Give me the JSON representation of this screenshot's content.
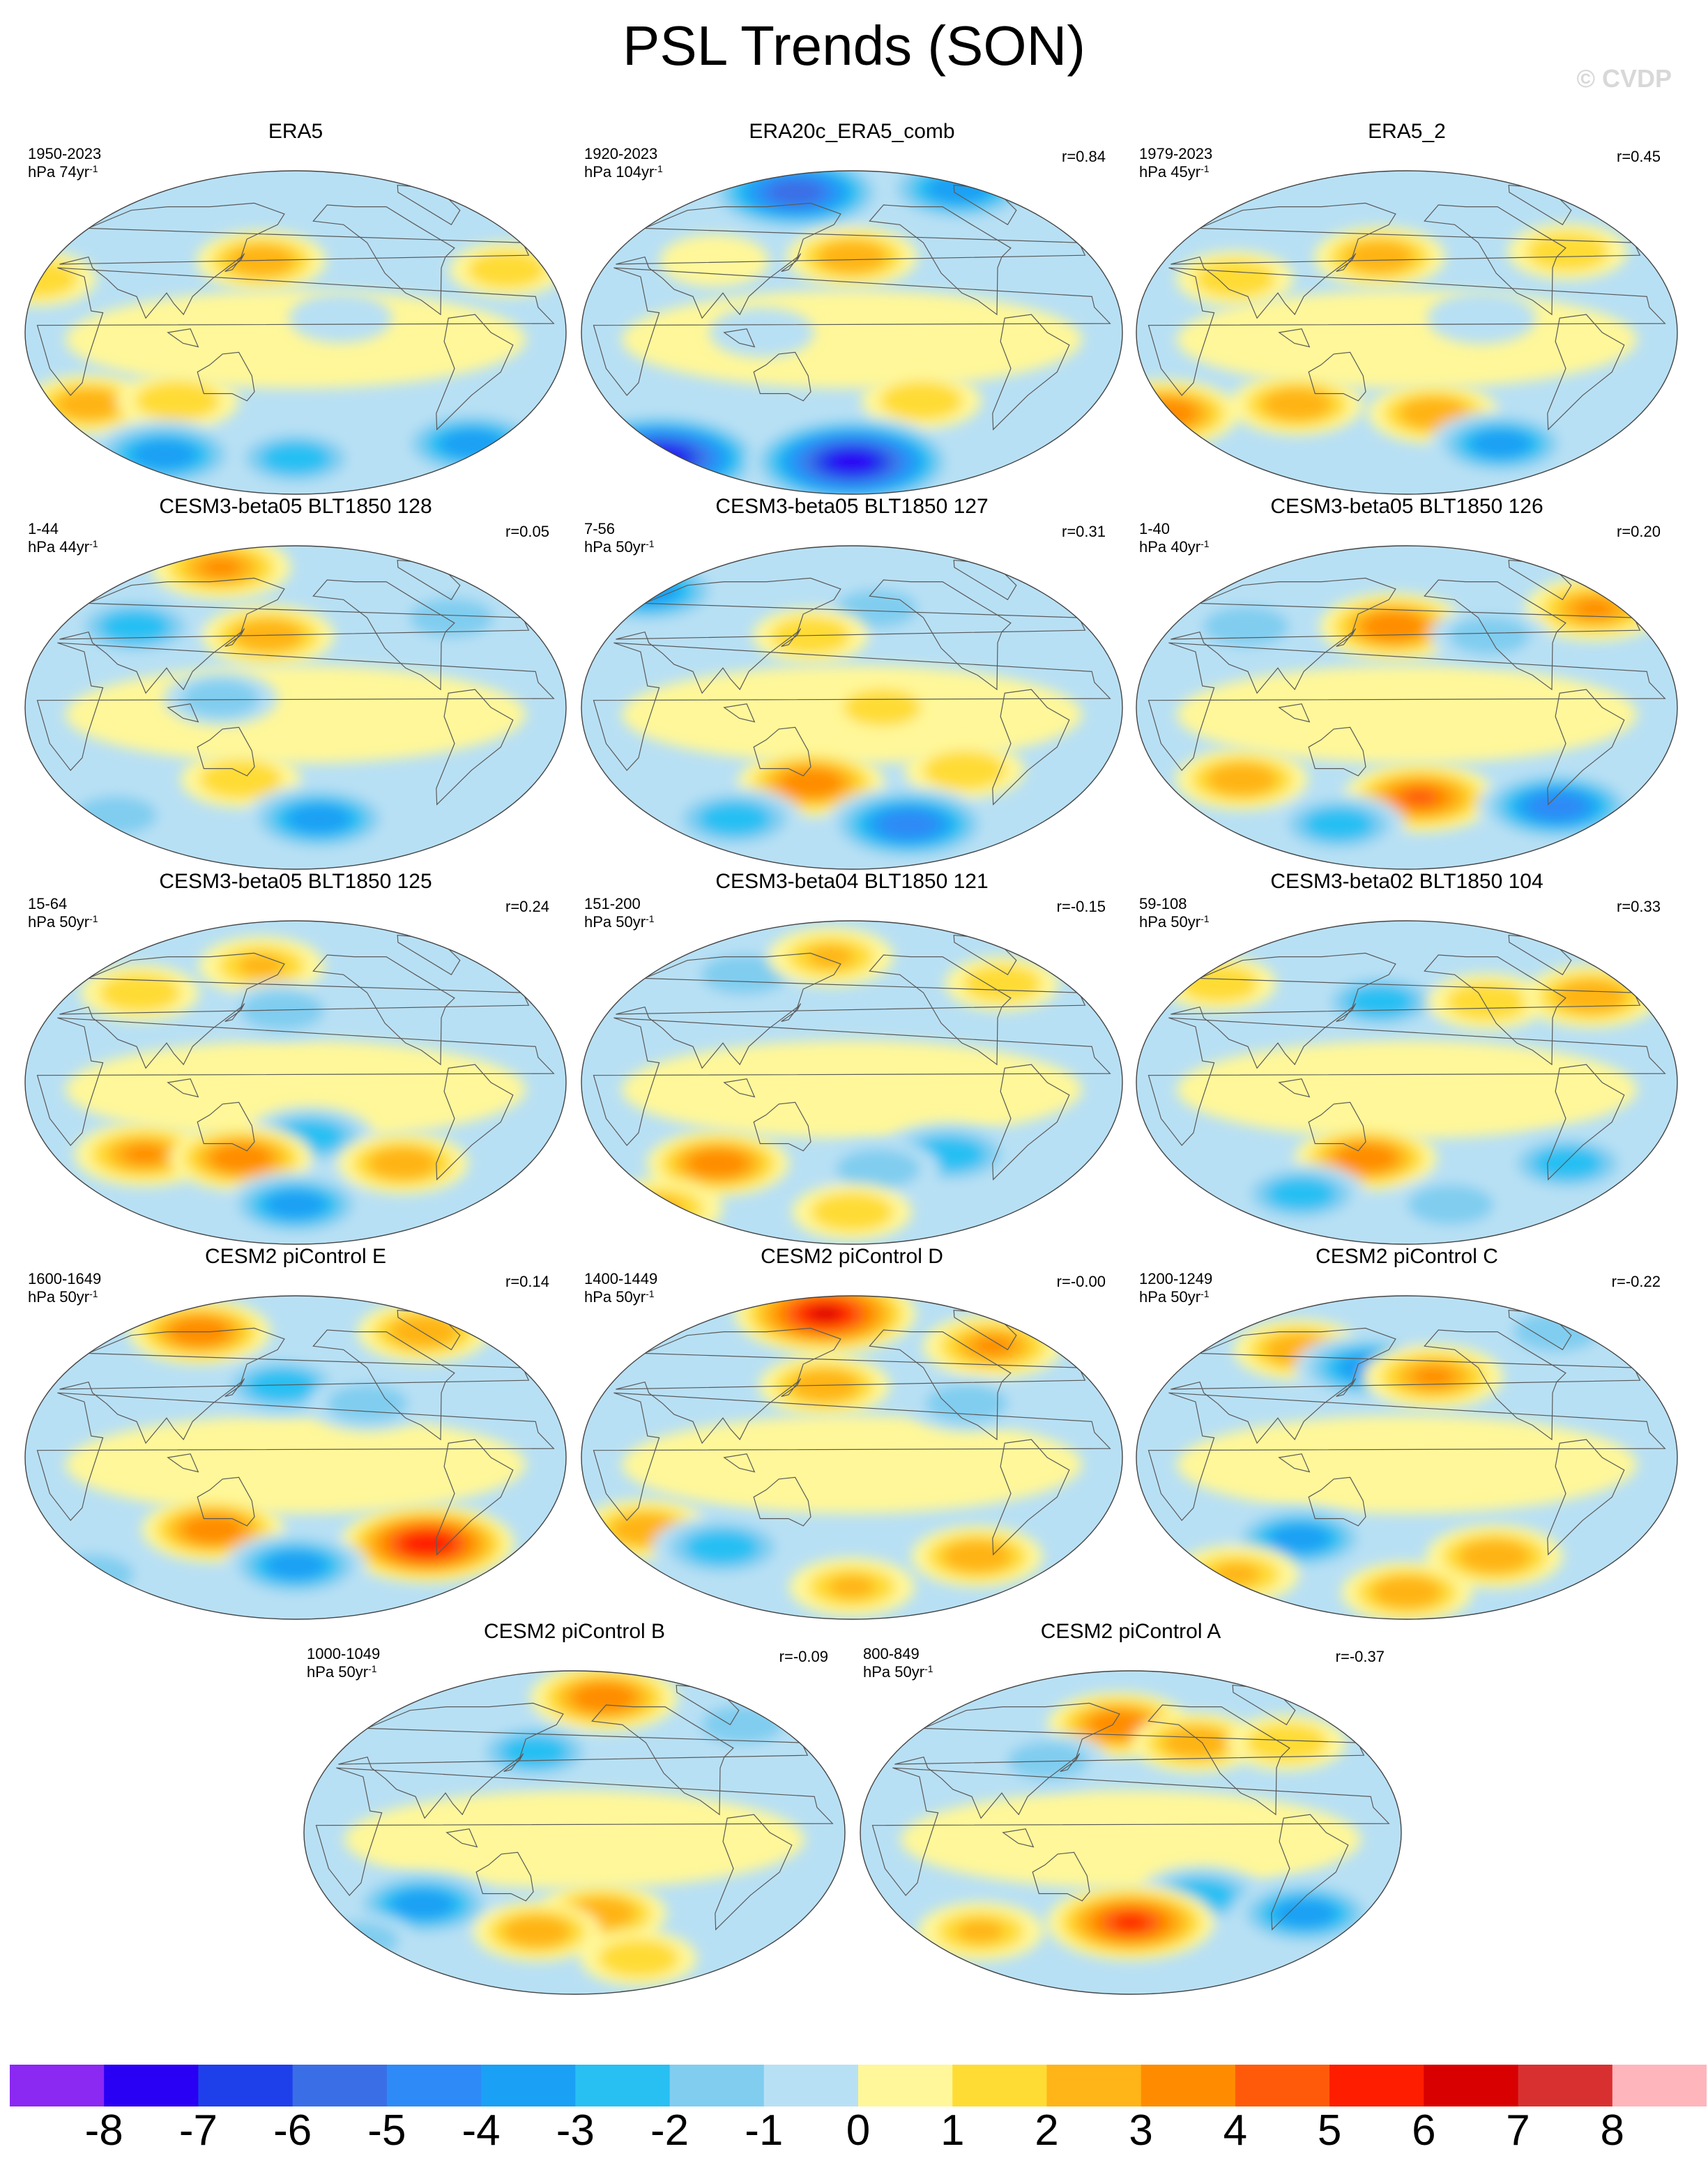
{
  "title": "PSL Trends (SON)",
  "watermark": "© CVDP",
  "chart_data": {
    "type": "heatmap",
    "projection": "Robinson (global maps, Pacific-centered)",
    "panels": [
      {
        "title": "ERA5",
        "period": "1950-2023",
        "units": "hPa 74yr",
        "r": "",
        "features": [
          {
            "lon": 155,
            "lat": 40,
            "v": 2.3
          },
          {
            "lon": 210,
            "lat": 8,
            "v": -0.4
          },
          {
            "lon": 0,
            "lat": 30,
            "v": 1.4
          },
          {
            "lon": 330,
            "lat": 35,
            "v": 1.2
          },
          {
            "lon": 30,
            "lat": -40,
            "v": 2.2
          },
          {
            "lon": 95,
            "lat": -38,
            "v": 1.8
          },
          {
            "lon": 330,
            "lat": -62,
            "v": -3.8
          },
          {
            "lon": 60,
            "lat": -68,
            "v": -4
          },
          {
            "lon": 180,
            "lat": -70,
            "v": -2.5
          }
        ]
      },
      {
        "title": "ERA20c_ERA5_comb",
        "period": "1920-2023",
        "units": "hPa 104yr",
        "r": "r=0.84",
        "features": [
          {
            "lon": 120,
            "lat": 78,
            "v": -6
          },
          {
            "lon": 300,
            "lat": 80,
            "v": -4
          },
          {
            "lon": 180,
            "lat": 42,
            "v": 2.4
          },
          {
            "lon": 80,
            "lat": 40,
            "v": 0.8
          },
          {
            "lon": 120,
            "lat": 0,
            "v": -0.5
          },
          {
            "lon": 230,
            "lat": -38,
            "v": 1.6
          },
          {
            "lon": 0,
            "lat": -70,
            "v": -8
          },
          {
            "lon": 180,
            "lat": -72,
            "v": -8
          }
        ]
      },
      {
        "title": "ERA5_2",
        "period": "1979-2023",
        "units": "hPa 45yr",
        "r": "r=0.45",
        "features": [
          {
            "lon": 160,
            "lat": 42,
            "v": 2.4
          },
          {
            "lon": 300,
            "lat": 45,
            "v": 1.6
          },
          {
            "lon": 60,
            "lat": 30,
            "v": 1.4
          },
          {
            "lon": 230,
            "lat": 8,
            "v": -0.8
          },
          {
            "lon": 100,
            "lat": -40,
            "v": 2.5
          },
          {
            "lon": 0,
            "lat": -45,
            "v": 3.5
          },
          {
            "lon": 200,
            "lat": -45,
            "v": 2.4
          },
          {
            "lon": 260,
            "lat": -62,
            "v": -3.2
          }
        ]
      },
      {
        "title": "CESM3-beta05 BLT1850 128",
        "period": "1-44",
        "units": "hPa 44yr",
        "r": "r=0.05",
        "features": [
          {
            "lon": 100,
            "lat": 78,
            "v": 3
          },
          {
            "lon": 160,
            "lat": 40,
            "v": 2.5
          },
          {
            "lon": 300,
            "lat": 50,
            "v": -1.8
          },
          {
            "lon": 60,
            "lat": 45,
            "v": -2.5
          },
          {
            "lon": 130,
            "lat": 5,
            "v": -1.2
          },
          {
            "lon": 140,
            "lat": -40,
            "v": 1.6
          },
          {
            "lon": 200,
            "lat": -62,
            "v": -3.8
          },
          {
            "lon": 30,
            "lat": -60,
            "v": -1.6
          }
        ]
      },
      {
        "title": "CESM3-beta05 BLT1850 127",
        "period": "7-56",
        "units": "hPa 50yr",
        "r": "r=0.31",
        "features": [
          {
            "lon": 0,
            "lat": 65,
            "v": -4
          },
          {
            "lon": 200,
            "lat": 55,
            "v": -1.5
          },
          {
            "lon": 150,
            "lat": 40,
            "v": 1.3
          },
          {
            "lon": 200,
            "lat": 0,
            "v": 1.1
          },
          {
            "lon": 260,
            "lat": -35,
            "v": 1.6
          },
          {
            "lon": 150,
            "lat": -42,
            "v": 3.5
          },
          {
            "lon": 230,
            "lat": -65,
            "v": -5
          },
          {
            "lon": 80,
            "lat": -62,
            "v": -2.8
          }
        ]
      },
      {
        "title": "CESM3-beta05 BLT1850 126",
        "period": "1-40",
        "units": "hPa 40yr",
        "r": "r=0.20",
        "features": [
          {
            "lon": 170,
            "lat": 45,
            "v": 3.6
          },
          {
            "lon": 330,
            "lat": 55,
            "v": 3
          },
          {
            "lon": 60,
            "lat": 45,
            "v": -2
          },
          {
            "lon": 240,
            "lat": 40,
            "v": -1.5
          },
          {
            "lon": 60,
            "lat": -40,
            "v": 2.5
          },
          {
            "lon": 190,
            "lat": -50,
            "v": 4
          },
          {
            "lon": 300,
            "lat": -55,
            "v": -4.5
          },
          {
            "lon": 120,
            "lat": -65,
            "v": -2.5
          }
        ]
      },
      {
        "title": "CESM3-beta05 BLT1850 125",
        "period": "15-64",
        "units": "hPa 50yr",
        "r": "r=0.24",
        "features": [
          {
            "lon": 150,
            "lat": 65,
            "v": 2
          },
          {
            "lon": 170,
            "lat": 40,
            "v": -1.8
          },
          {
            "lon": 60,
            "lat": 50,
            "v": 1.5
          },
          {
            "lon": 190,
            "lat": -30,
            "v": -2.2
          },
          {
            "lon": 70,
            "lat": -40,
            "v": 3
          },
          {
            "lon": 140,
            "lat": -42,
            "v": 3.2
          },
          {
            "lon": 260,
            "lat": -45,
            "v": 2.4
          },
          {
            "lon": 180,
            "lat": -68,
            "v": -3.2
          }
        ]
      },
      {
        "title": "CESM3-beta04 BLT1850 121",
        "period": "151-200",
        "units": "hPa 50yr",
        "r": "r=-0.15",
        "features": [
          {
            "lon": 90,
            "lat": 60,
            "v": -2
          },
          {
            "lon": 160,
            "lat": 70,
            "v": 2
          },
          {
            "lon": 300,
            "lat": 55,
            "v": 1.2
          },
          {
            "lon": 80,
            "lat": -45,
            "v": 3.2
          },
          {
            "lon": 250,
            "lat": -40,
            "v": -3
          },
          {
            "lon": 200,
            "lat": -48,
            "v": -1.8
          },
          {
            "lon": 0,
            "lat": -70,
            "v": 2
          },
          {
            "lon": 180,
            "lat": -72,
            "v": 1.6
          }
        ]
      },
      {
        "title": "CESM3-beta02 BLT1850 104",
        "period": "59-108",
        "units": "hPa 50yr",
        "r": "r=0.33",
        "features": [
          {
            "lon": 160,
            "lat": 45,
            "v": -2.2
          },
          {
            "lon": 240,
            "lat": 45,
            "v": 1.6
          },
          {
            "lon": 320,
            "lat": 48,
            "v": 2.8
          },
          {
            "lon": 30,
            "lat": 55,
            "v": 1.2
          },
          {
            "lon": 150,
            "lat": -42,
            "v": 3.2
          },
          {
            "lon": 300,
            "lat": -45,
            "v": -2.5
          },
          {
            "lon": 90,
            "lat": -62,
            "v": -2.4
          },
          {
            "lon": 220,
            "lat": -68,
            "v": -2
          }
        ]
      },
      {
        "title": "CESM2 piControl E",
        "period": "1600-1649",
        "units": "hPa 50yr",
        "r": "r=0.14",
        "features": [
          {
            "lon": 90,
            "lat": 70,
            "v": 3.2
          },
          {
            "lon": 300,
            "lat": 70,
            "v": 2.5
          },
          {
            "lon": 170,
            "lat": 40,
            "v": -2.5
          },
          {
            "lon": 230,
            "lat": 30,
            "v": -1.5
          },
          {
            "lon": 120,
            "lat": -40,
            "v": 3.2
          },
          {
            "lon": 280,
            "lat": -48,
            "v": 5.5
          },
          {
            "lon": 180,
            "lat": -60,
            "v": -3.2
          },
          {
            "lon": 0,
            "lat": -65,
            "v": -2
          }
        ]
      },
      {
        "title": "CESM2 piControl D",
        "period": "1400-1449",
        "units": "hPa 50yr",
        "r": "r=-0.00",
        "features": [
          {
            "lon": 150,
            "lat": 80,
            "v": 6
          },
          {
            "lon": 300,
            "lat": 62,
            "v": 3
          },
          {
            "lon": 160,
            "lat": 40,
            "v": 2.4
          },
          {
            "lon": 260,
            "lat": 30,
            "v": -1.6
          },
          {
            "lon": 30,
            "lat": -40,
            "v": 2.4
          },
          {
            "lon": 80,
            "lat": -50,
            "v": -3
          },
          {
            "lon": 280,
            "lat": -55,
            "v": 2.4
          },
          {
            "lon": 180,
            "lat": -72,
            "v": 2
          }
        ]
      },
      {
        "title": "CESM2 piControl C",
        "period": "1200-1249",
        "units": "hPa 50yr",
        "r": "r=-0.22",
        "features": [
          {
            "lon": 90,
            "lat": 60,
            "v": 2.4
          },
          {
            "lon": 150,
            "lat": 50,
            "v": -3.5
          },
          {
            "lon": 200,
            "lat": 45,
            "v": 3
          },
          {
            "lon": 320,
            "lat": 70,
            "v": -2
          },
          {
            "lon": 100,
            "lat": -45,
            "v": -3.2
          },
          {
            "lon": 250,
            "lat": -55,
            "v": 2.8
          },
          {
            "lon": 30,
            "lat": -65,
            "v": 2
          },
          {
            "lon": 180,
            "lat": -75,
            "v": 2.4
          }
        ]
      },
      {
        "title": "CESM2 piControl B",
        "period": "1000-1049",
        "units": "hPa 50yr",
        "r": "r=-0.09",
        "features": [
          {
            "lon": 210,
            "lat": 75,
            "v": 3.6
          },
          {
            "lon": 150,
            "lat": 45,
            "v": -2.2
          },
          {
            "lon": 320,
            "lat": 60,
            "v": -1.6
          },
          {
            "lon": 70,
            "lat": -40,
            "v": -3.6
          },
          {
            "lon": 200,
            "lat": -45,
            "v": 2.4
          },
          {
            "lon": 150,
            "lat": -55,
            "v": 2.2
          },
          {
            "lon": 0,
            "lat": -60,
            "v": -1.4
          },
          {
            "lon": 240,
            "lat": -70,
            "v": 1.4
          }
        ]
      },
      {
        "title": "CESM2 piControl A",
        "period": "800-849",
        "units": "hPa 50yr",
        "r": "r=-0.37",
        "features": [
          {
            "lon": 170,
            "lat": 60,
            "v": 3.2
          },
          {
            "lon": 230,
            "lat": 50,
            "v": 2.2
          },
          {
            "lon": 120,
            "lat": 40,
            "v": -1.5
          },
          {
            "lon": 300,
            "lat": 50,
            "v": 1.5
          },
          {
            "lon": 230,
            "lat": -35,
            "v": -2.2
          },
          {
            "lon": 180,
            "lat": -50,
            "v": 5
          },
          {
            "lon": 310,
            "lat": -45,
            "v": -3.5
          },
          {
            "lon": 60,
            "lat": -55,
            "v": 2
          }
        ]
      }
    ],
    "colorbar": {
      "ticks": [
        "-8",
        "-7",
        "-6",
        "-5",
        "-4",
        "-3",
        "-2",
        "-1",
        "0",
        "1",
        "2",
        "3",
        "4",
        "5",
        "6",
        "7",
        "8"
      ],
      "range": [
        -8,
        8
      ],
      "colors": [
        "#8b28f2",
        "#2a00f5",
        "#1e40ea",
        "#3a6ee6",
        "#2e8af6",
        "#1aa0f4",
        "#28bff3",
        "#80cdf0",
        "#b8e0f4",
        "#fff799",
        "#ffdc34",
        "#ffb418",
        "#ff8c00",
        "#ff5a0a",
        "#ff1d00",
        "#d80000",
        "#d83030",
        "#ffb5bc"
      ]
    }
  }
}
